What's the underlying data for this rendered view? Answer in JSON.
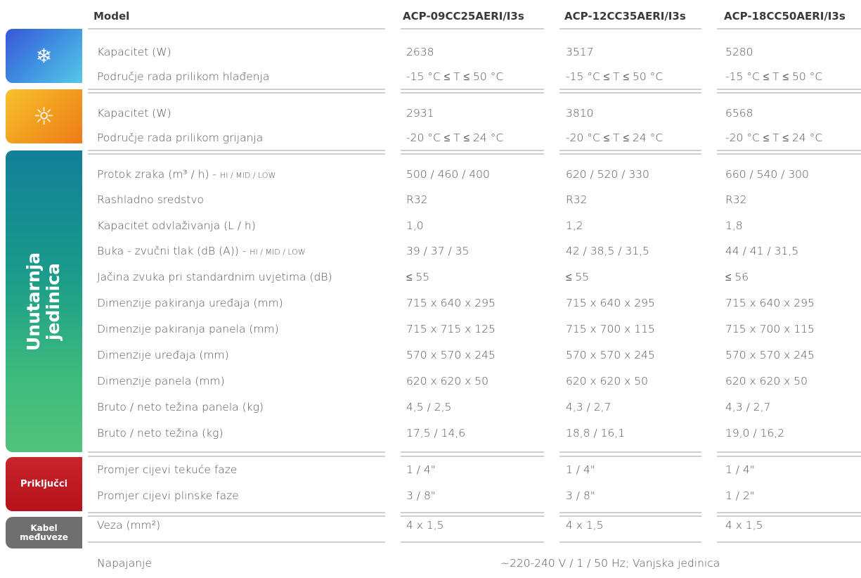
{
  "header": {
    "model_label": "Model",
    "models": [
      "ACP-09CC25AERI/I3s",
      "ACP-12CC35AERI/I3s",
      "ACP-18CC50AERI/I3s"
    ]
  },
  "sections": {
    "cooling": {
      "icon": "snowflake-icon",
      "glyph": "❄"
    },
    "heating": {
      "icon": "sun-icon",
      "glyph": "☼"
    },
    "indoor": {
      "label_line1": "Unutarnja",
      "label_line2": "jedinica"
    },
    "connections": {
      "label": "Priključci"
    },
    "cable": {
      "label_line1": "Kabel",
      "label_line2": "međuveze"
    }
  },
  "rows": [
    {
      "label": "Kapacitet (W)",
      "values": [
        "2638",
        "3517",
        "5280"
      ]
    },
    {
      "label": "Područje rada prilikom hlađenja",
      "values": [
        "-15 °C ≤ T ≤ 50 °C",
        "-15 °C ≤ T ≤ 50 °C",
        "-15 °C ≤ T ≤ 50 °C"
      ]
    },
    {
      "label": "Kapacitet (W)",
      "values": [
        "2931",
        "3810",
        "6568"
      ]
    },
    {
      "label": "Područje rada prilikom grijanja",
      "values": [
        "-20 °C ≤ T ≤ 24 °C",
        "-20 °C ≤ T ≤ 24 °C",
        "-20 °C ≤ T ≤ 24 °C"
      ]
    },
    {
      "label": "Protok zraka (m³ / h) - ",
      "label_small": "HI / MID / LOW",
      "values": [
        "500 / 460 / 400",
        "620 / 520 / 330",
        "660 / 540 / 300"
      ]
    },
    {
      "label": "Rashladno sredstvo",
      "values": [
        "R32",
        "R32",
        "R32"
      ]
    },
    {
      "label": "Kapacitet odvlaživanja (L / h)",
      "values": [
        "1,0",
        "1,2",
        "1,8"
      ]
    },
    {
      "label": "Buka - zvučni tlak (dB (A)) - ",
      "label_small": "HI / MID / LOW",
      "values": [
        "39 / 37 / 35",
        "42 / 38,5 / 31,5",
        "44 / 41 / 31,5"
      ]
    },
    {
      "label": "Jačina zvuka pri standardnim uvjetima (dB)",
      "values": [
        "≤ 55",
        "≤ 55",
        "≤ 56"
      ]
    },
    {
      "label": "Dimenzije pakiranja uređaja (mm)",
      "values": [
        "715 x 640 x 295",
        "715 x 640 x 295",
        "715 x 640 x 295"
      ]
    },
    {
      "label": "Dimenzije pakiranja panela (mm)",
      "values": [
        "715 x 715 x 125",
        "715 x 700 x 115",
        "715 x 700 x 115"
      ]
    },
    {
      "label": "Dimenzije uređaja (mm)",
      "values": [
        "570 x 570 x 245",
        "570 x 570 x 245",
        "570 x 570 x 245"
      ]
    },
    {
      "label": "Dimenzije panela (mm)",
      "values": [
        "620 x 620 x 50",
        "620 x 620 x 50",
        "620 x 620 x 50"
      ]
    },
    {
      "label": "Bruto / neto težina panela (kg)",
      "values": [
        "4,5 / 2,5",
        "4,3 / 2,7",
        "4,3 / 2,7"
      ]
    },
    {
      "label": "Bruto / neto težina (kg)",
      "values": [
        "17,5 / 14,6",
        "18,8 / 16,1",
        "19,0 / 16,2"
      ]
    },
    {
      "label": "Promjer cijevi tekuće faze",
      "values": [
        "1 / 4\"",
        "1 / 4\"",
        "1 / 4\""
      ]
    },
    {
      "label": "Promjer cijevi plinske faze",
      "values": [
        "3 / 8\"",
        "3 / 8\"",
        "1 / 2\""
      ]
    },
    {
      "label": "Veza (mm²)",
      "values": [
        "4 x 1,5",
        "4 x 1,5",
        "4 x 1,5"
      ]
    }
  ],
  "footer": {
    "label": "Napajanje",
    "value": "~220-240 V / 1 / 50 Hz; Vanjska jedinica"
  }
}
